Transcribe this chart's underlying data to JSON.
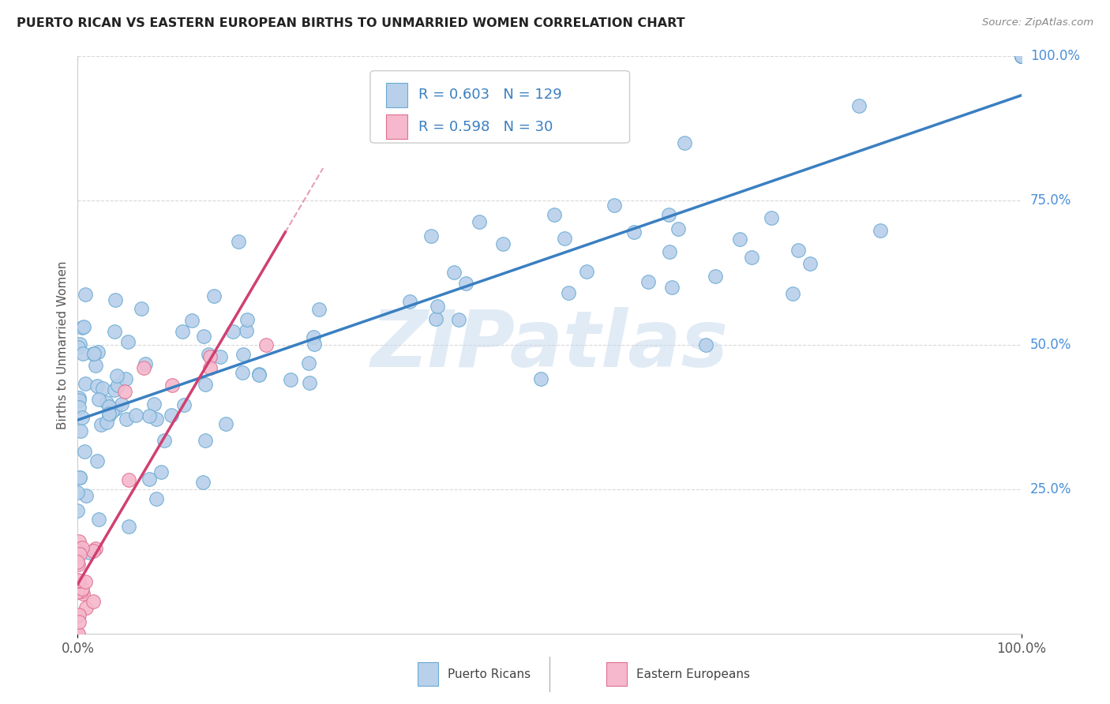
{
  "title": "PUERTO RICAN VS EASTERN EUROPEAN BIRTHS TO UNMARRIED WOMEN CORRELATION CHART",
  "source": "Source: ZipAtlas.com",
  "ylabel": "Births to Unmarried Women",
  "blue_R": 0.603,
  "blue_N": 129,
  "pink_R": 0.598,
  "pink_N": 30,
  "blue_dot_color": "#b8d0ea",
  "blue_dot_edge": "#6aaad4",
  "pink_dot_color": "#f5b8cc",
  "pink_dot_edge": "#e07090",
  "blue_line_color": "#3a7fc1",
  "pink_line_color": "#d04070",
  "legend_blue_label": "Puerto Ricans",
  "legend_pink_label": "Eastern Europeans",
  "watermark": "ZIPatlas",
  "background_color": "#ffffff",
  "grid_color": "#d8d8d8",
  "title_color": "#222222",
  "source_color": "#888888",
  "axis_label_color": "#555555",
  "right_tick_color": "#4a90d9",
  "seed_blue": 42,
  "seed_pink": 99
}
